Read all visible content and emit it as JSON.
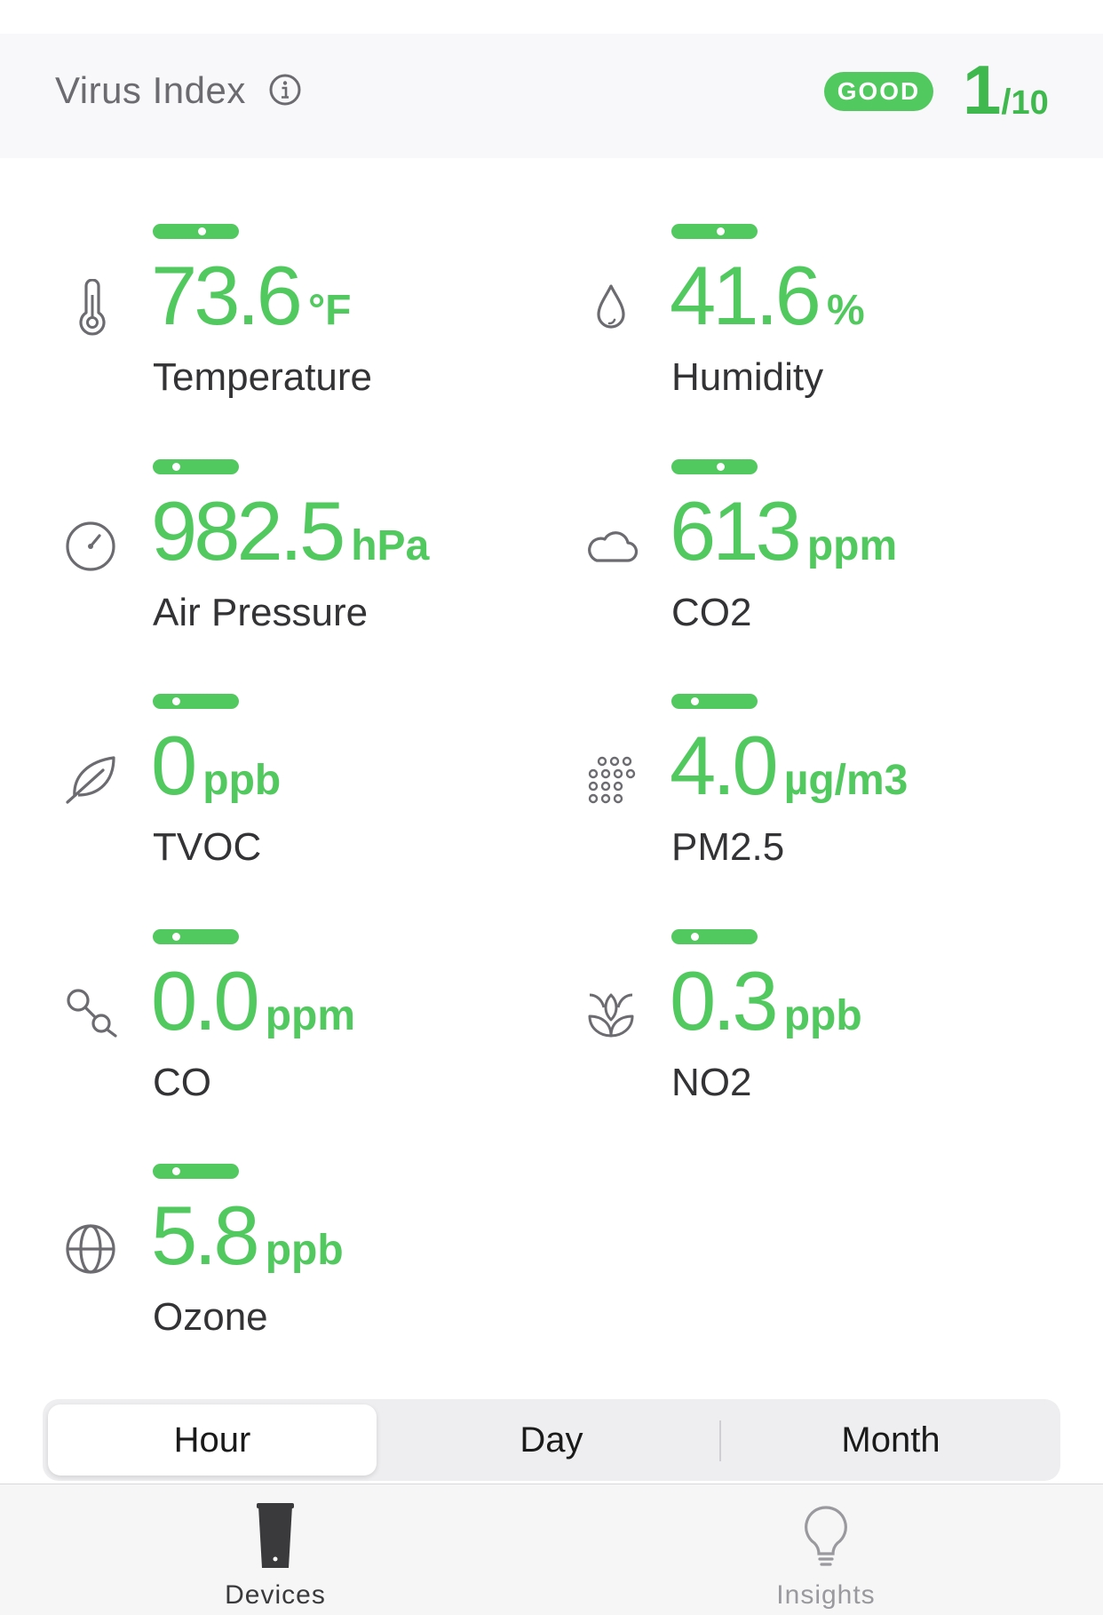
{
  "header": {
    "title": "Virus Index",
    "status_badge": "GOOD",
    "score": "1",
    "score_separator": "/",
    "score_max": "10"
  },
  "colors": {
    "accent_green": "#52c95f",
    "text_dark": "#333336",
    "icon_gray": "#6b6b70"
  },
  "metrics": [
    {
      "icon": "thermometer-icon",
      "value": "73.6",
      "unit": "°F",
      "label": "Temperature",
      "level": 0.6
    },
    {
      "icon": "droplet-icon",
      "value": "41.6",
      "unit": "%",
      "label": "Humidity",
      "level": 0.6
    },
    {
      "icon": "gauge-icon",
      "value": "982.5",
      "unit": "hPa",
      "label": "Air Pressure",
      "level": 0.2
    },
    {
      "icon": "cloud-icon",
      "value": "613",
      "unit": "ppm",
      "label": "CO2",
      "level": 0.6
    },
    {
      "icon": "leaf-icon",
      "value": "0",
      "unit": "ppb",
      "label": "TVOC",
      "level": 0.2
    },
    {
      "icon": "particles-icon",
      "value": "4.0",
      "unit": "µg/m3",
      "label": "PM2.5",
      "level": 0.2
    },
    {
      "icon": "co-molecule-icon",
      "value": "0.0",
      "unit": "ppm",
      "label": "CO",
      "level": 0.2
    },
    {
      "icon": "sprout-icon",
      "value": "0.3",
      "unit": "ppb",
      "label": "NO2",
      "level": 0.2
    },
    {
      "icon": "globe-icon",
      "value": "5.8",
      "unit": "ppb",
      "label": "Ozone",
      "level": 0.2
    }
  ],
  "time_range": {
    "options": [
      "Hour",
      "Day",
      "Month"
    ],
    "selected": "Hour"
  },
  "tabbar": {
    "tabs": [
      {
        "label": "Devices",
        "icon": "device-icon",
        "active": true
      },
      {
        "label": "Insights",
        "icon": "lightbulb-icon",
        "active": false
      }
    ]
  }
}
